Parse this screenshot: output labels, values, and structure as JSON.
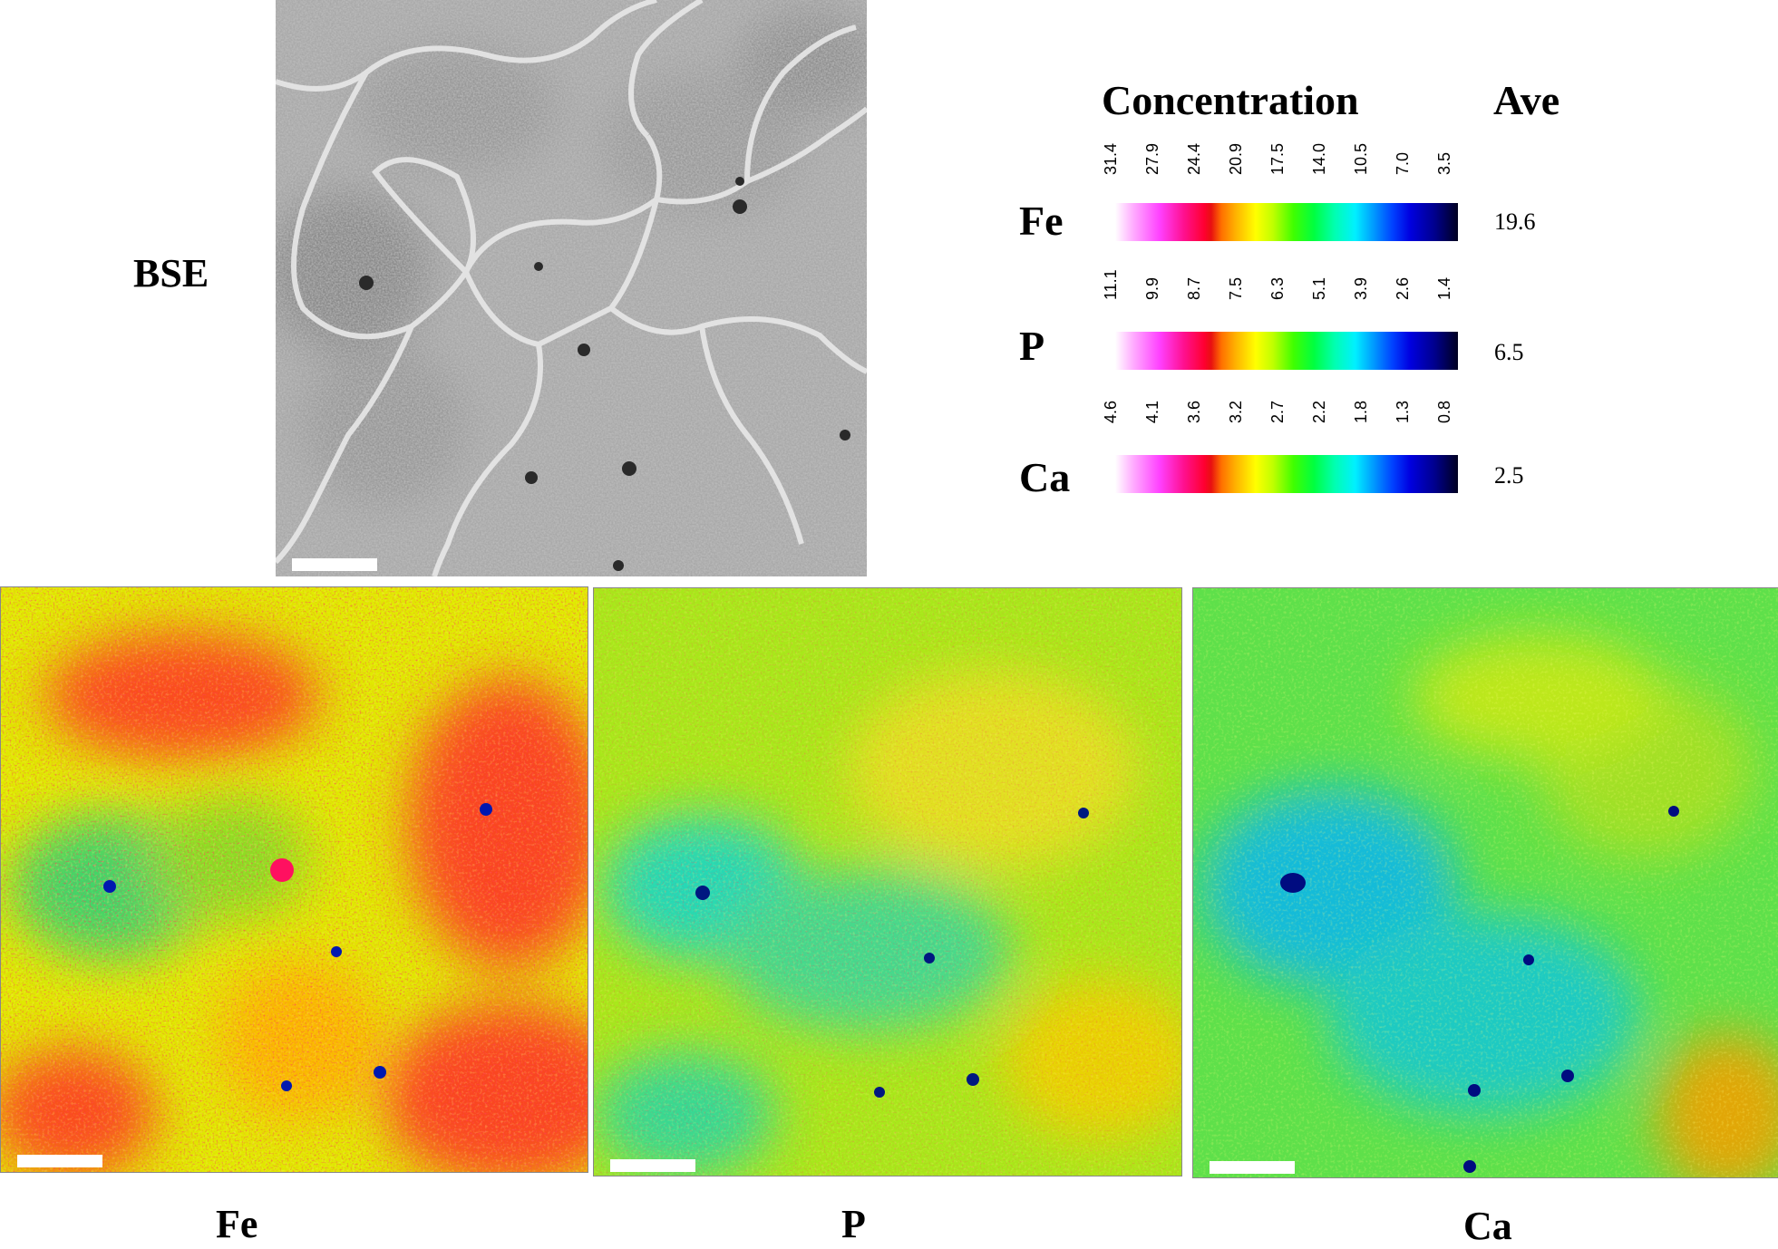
{
  "figure": {
    "bse_label": "BSE",
    "legend": {
      "concentration_title": "Concentration",
      "ave_title": "Ave",
      "rows": [
        {
          "element": "Fe",
          "ticks": [
            "31.4",
            "27.9",
            "24.4",
            "20.9",
            "17.5",
            "14.0",
            "10.5",
            "7.0",
            "3.5"
          ],
          "ave": "19.6"
        },
        {
          "element": "P",
          "ticks": [
            "11.1",
            "9.9",
            "8.7",
            "7.5",
            "6.3",
            "5.1",
            "3.9",
            "2.6",
            "1.4"
          ],
          "ave": "6.5"
        },
        {
          "element": "Ca",
          "ticks": [
            "4.6",
            "4.1",
            "3.6",
            "3.2",
            "2.7",
            "2.2",
            "1.8",
            "1.3",
            "0.8"
          ],
          "ave": "2.5"
        }
      ]
    },
    "maps": [
      {
        "label": "Fe"
      },
      {
        "label": "P"
      },
      {
        "label": "Ca"
      }
    ]
  }
}
